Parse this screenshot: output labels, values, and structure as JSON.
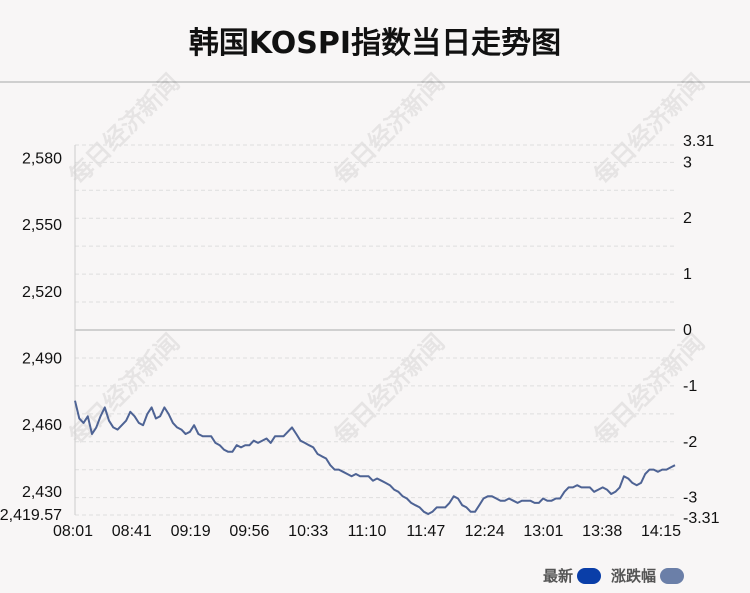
{
  "title": "韩国KOSPI指数当日走势图",
  "watermark": "每日经济新闻",
  "legend": [
    {
      "label": "最新",
      "color": "#0a3ea8"
    },
    {
      "label": "涨跌幅",
      "color": "#6b7fa8"
    }
  ],
  "colors": {
    "line": "#4e6394",
    "zero_line": "#d0d0d0",
    "grid": "#dedede"
  },
  "chart_data": {
    "type": "line",
    "x_ticks": [
      "08:01",
      "08:41",
      "09:19",
      "09:56",
      "10:33",
      "11:10",
      "11:47",
      "12:24",
      "13:01",
      "13:38",
      "14:15"
    ],
    "y_left": {
      "ticks": [
        "2,580",
        "2,550",
        "2,520",
        "2,490",
        "2,460",
        "2,430"
      ],
      "tick_values": [
        2580,
        2550,
        2520,
        2490,
        2460,
        2430
      ],
      "min_label": "2,419.57",
      "ylim": [
        2419.57,
        2586.06
      ]
    },
    "y_right": {
      "ticks": [
        "3.31",
        "3",
        "2",
        "1",
        "0",
        "-1",
        "-2",
        "-3",
        "-3.31"
      ],
      "tick_values": [
        3.31,
        3,
        2,
        1,
        0,
        -1,
        -2,
        -3,
        -3.31
      ],
      "ylim": [
        -3.31,
        3.31
      ]
    },
    "series": [
      {
        "values": [
          2471,
          2463,
          2461,
          2464,
          2456,
          2459,
          2464,
          2468,
          2462,
          2459,
          2458,
          2460,
          2462,
          2466,
          2464,
          2461,
          2460,
          2465,
          2468,
          2463,
          2464,
          2468,
          2465,
          2461,
          2459,
          2458,
          2456,
          2457,
          2460,
          2456,
          2455,
          2455,
          2455,
          2452,
          2451,
          2449,
          2448,
          2448,
          2451,
          2450,
          2451,
          2451,
          2453,
          2452,
          2453,
          2454,
          2452,
          2455,
          2455,
          2455,
          2457,
          2459,
          2456,
          2453,
          2452,
          2451,
          2450,
          2447,
          2446,
          2445,
          2442,
          2440,
          2440,
          2439,
          2438,
          2437,
          2438,
          2437,
          2437,
          2437,
          2435,
          2436,
          2435,
          2434,
          2433,
          2431,
          2430,
          2428,
          2427,
          2425,
          2424,
          2423,
          2421,
          2420,
          2421,
          2423,
          2423,
          2423,
          2425,
          2428,
          2427,
          2424,
          2423,
          2421,
          2421,
          2424,
          2427,
          2428,
          2428,
          2427,
          2426,
          2426,
          2427,
          2426,
          2425,
          2426,
          2426,
          2426,
          2425,
          2425,
          2427,
          2426,
          2426,
          2427,
          2427,
          2430,
          2432,
          2432,
          2433,
          2432,
          2432,
          2432,
          2430,
          2431,
          2432,
          2431,
          2429,
          2430,
          2432,
          2437,
          2436,
          2434,
          2433,
          2434,
          2438,
          2440,
          2440,
          2439,
          2440,
          2440,
          2441,
          2442
        ]
      }
    ]
  }
}
